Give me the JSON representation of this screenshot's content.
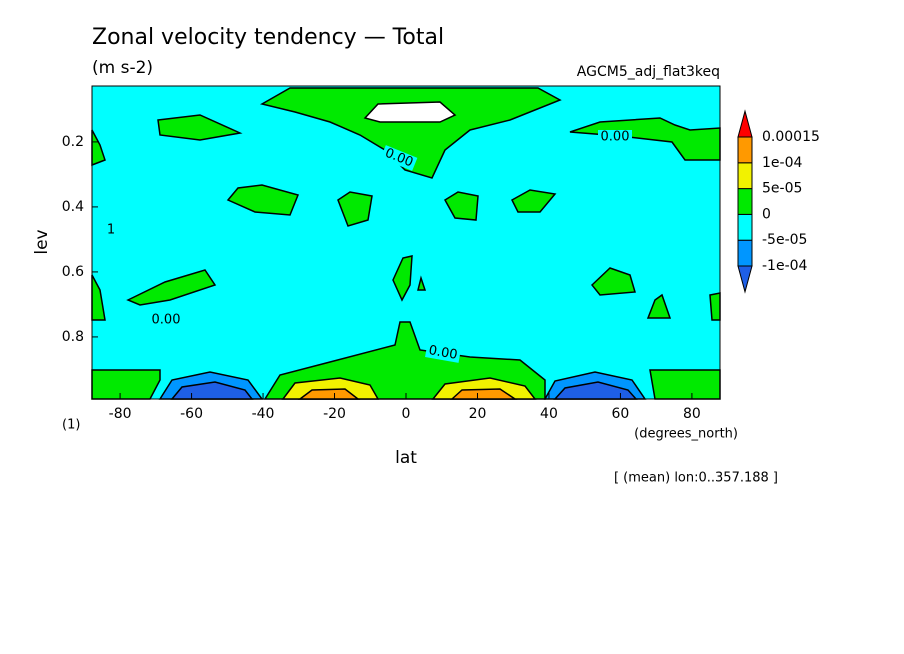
{
  "chart_data": {
    "type": "contour",
    "title": "Zonal velocity tendency — Total",
    "subtitle": "(m s-2)",
    "source": "AGCM5_adj_flat3keq",
    "xlabel": "lat",
    "xunits": "(degrees_north)",
    "ylabel": "lev",
    "yunits": "(1)",
    "note": "[ (mean) lon:0..357.188 ]",
    "inset_label": "1",
    "contour_labels": [
      "0.00",
      "0.00",
      "0.00",
      "0.00"
    ],
    "xlim": [
      -87.86,
      87.86
    ],
    "xticks": [
      -80,
      -60,
      -40,
      -20,
      0,
      20,
      40,
      60,
      80
    ],
    "ylim": [
      0.991,
      0.028
    ],
    "yticks": [
      0.2,
      0.4,
      0.6,
      0.8
    ],
    "colorbar": {
      "ticks": [
        {
          "value": -0.0001,
          "label": "-1e-04"
        },
        {
          "value": -5e-05,
          "label": "-5e-05"
        },
        0,
        {
          "value": 5e-05,
          "label": "5e-05"
        },
        {
          "value": 0.0001,
          "label": "1e-04"
        },
        0.00015
      ],
      "colors": [
        "#1e5fe6",
        "#0096ff",
        "#00ffff",
        "#00ea00",
        "#f2f200",
        "#ff9900",
        "#ff0000"
      ]
    }
  }
}
